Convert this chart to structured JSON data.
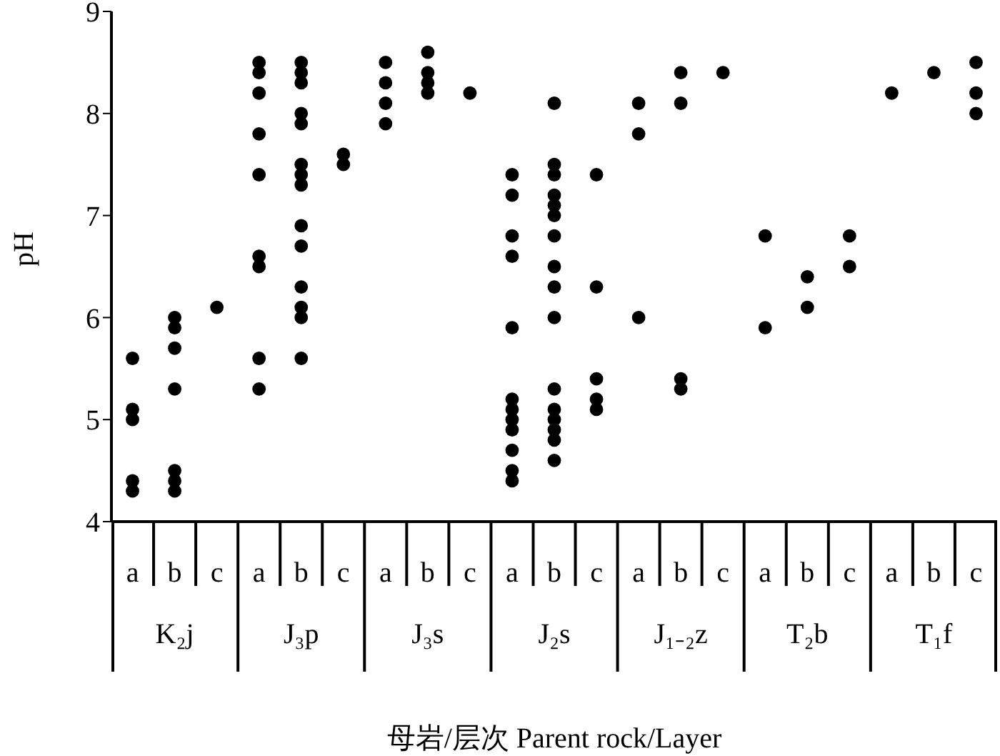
{
  "chart_data": {
    "type": "scatter",
    "xlabel": "母岩/层次 Parent rock/Layer",
    "ylabel": "pH",
    "categories": [
      "K₂j",
      "J₃p",
      "J₃s",
      "J₂s",
      "J₁₋₂z",
      "T₂b",
      "T₁f"
    ],
    "series": [
      {
        "name": "a",
        "color": "#000000",
        "x": [
          "K₂j",
          "K₂j",
          "K₂j",
          "K₂j",
          "K₂j",
          "J₃p",
          "J₃p",
          "J₃p",
          "J₃p",
          "J₃p",
          "J₃p",
          "J₃p",
          "J₃p",
          "J₃p",
          "J₃s",
          "J₃s",
          "J₃s",
          "J₃s",
          "J₂s",
          "J₂s",
          "J₂s",
          "J₂s",
          "J₂s",
          "J₂s",
          "J₂s",
          "J₂s",
          "J₂s",
          "J₂s",
          "J₂s",
          "J₂s",
          "J₁₋₂z",
          "J₁₋₂z",
          "J₁₋₂z",
          "T₂b",
          "T₂b",
          "T₁f"
        ],
        "values": [
          5.6,
          5.1,
          5.0,
          4.4,
          4.3,
          8.5,
          8.4,
          8.2,
          7.8,
          7.4,
          6.6,
          6.5,
          5.6,
          5.3,
          8.5,
          8.3,
          8.1,
          7.9,
          7.4,
          7.2,
          6.8,
          6.6,
          5.9,
          5.2,
          5.1,
          5.0,
          4.9,
          4.7,
          4.5,
          4.4,
          8.1,
          7.8,
          6.0,
          6.8,
          5.9,
          8.2
        ]
      },
      {
        "name": "b",
        "color": "#000000",
        "x": [
          "K₂j",
          "K₂j",
          "K₂j",
          "K₂j",
          "K₂j",
          "K₂j",
          "K₂j",
          "J₃p",
          "J₃p",
          "J₃p",
          "J₃p",
          "J₃p",
          "J₃p",
          "J₃p",
          "J₃p",
          "J₃p",
          "J₃p",
          "J₃p",
          "J₃p",
          "J₃p",
          "J₃p",
          "J₃s",
          "J₃s",
          "J₃s",
          "J₃s",
          "J₂s",
          "J₂s",
          "J₂s",
          "J₂s",
          "J₂s",
          "J₂s",
          "J₂s",
          "J₂s",
          "J₂s",
          "J₂s",
          "J₂s",
          "J₂s",
          "J₂s",
          "J₂s",
          "J₂s",
          "J₂s",
          "J₁₋₂z",
          "J₁₋₂z",
          "J₁₋₂z",
          "J₁₋₂z",
          "T₂b",
          "T₂b",
          "T₁f"
        ],
        "values": [
          6.0,
          5.9,
          5.7,
          5.3,
          4.5,
          4.4,
          4.3,
          8.5,
          8.4,
          8.3,
          8.0,
          7.9,
          7.5,
          7.4,
          7.3,
          6.9,
          6.7,
          6.3,
          6.1,
          6.0,
          5.6,
          8.6,
          8.4,
          8.3,
          8.2,
          8.1,
          7.5,
          7.4,
          7.2,
          7.1,
          7.0,
          6.8,
          6.5,
          6.3,
          6.0,
          5.3,
          5.1,
          5.0,
          4.9,
          4.8,
          4.6,
          8.4,
          8.1,
          5.4,
          5.3,
          6.4,
          6.1,
          8.4
        ]
      },
      {
        "name": "c",
        "color": "#000000",
        "x": [
          "K₂j",
          "J₃p",
          "J₃p",
          "J₃s",
          "J₂s",
          "J₂s",
          "J₂s",
          "J₂s",
          "J₂s",
          "J₁₋₂z",
          "T₂b",
          "T₂b",
          "T₁f",
          "T₁f",
          "T₁f"
        ],
        "values": [
          6.1,
          7.6,
          7.5,
          8.2,
          7.4,
          6.3,
          5.4,
          5.2,
          5.1,
          8.4,
          6.8,
          6.5,
          8.5,
          8.2,
          8.0
        ]
      }
    ],
    "marker": "circle",
    "legend": "bottom",
    "ylim": [
      4,
      9
    ],
    "yticks": [
      4,
      5,
      6,
      7,
      8,
      9
    ]
  }
}
